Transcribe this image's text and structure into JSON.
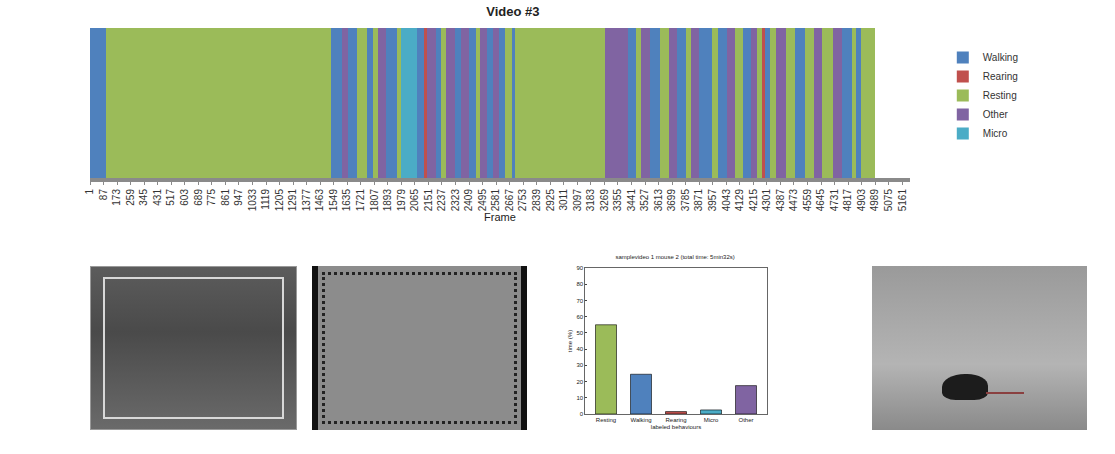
{
  "chart_data": [
    {
      "type": "timeline",
      "title": "Video #3",
      "xlabel": "Frame",
      "xlim": [
        1,
        5210
      ],
      "xticks": [
        1,
        87,
        173,
        259,
        345,
        431,
        517,
        603,
        689,
        775,
        861,
        947,
        1033,
        1119,
        1205,
        1291,
        1377,
        1463,
        1549,
        1635,
        1721,
        1807,
        1893,
        1979,
        2065,
        2151,
        2237,
        2323,
        2409,
        2495,
        2581,
        2667,
        2753,
        2839,
        2925,
        3011,
        3097,
        3183,
        3269,
        3355,
        3441,
        3527,
        3613,
        3699,
        3785,
        3871,
        3957,
        4043,
        4129,
        4215,
        4301,
        4387,
        4473,
        4559,
        4645,
        4731,
        4817,
        4903,
        4989,
        5075,
        5161
      ],
      "tick_labels": "x",
      "legend": "right",
      "grid": false,
      "series": [
        {
          "name": "Walking",
          "color": "#4f81bd",
          "segments": [
            [
              1,
              100
            ],
            [
              1530,
              1600
            ],
            [
              1640,
              1700
            ],
            [
              1760,
              1800
            ],
            [
              1880,
              1950
            ],
            [
              2080,
              2120
            ],
            [
              2200,
              2230
            ],
            [
              2320,
              2360
            ],
            [
              2410,
              2450
            ],
            [
              2520,
              2560
            ],
            [
              2600,
              2640
            ],
            [
              2680,
              2700
            ],
            [
              3420,
              3470
            ],
            [
              3560,
              3620
            ],
            [
              3730,
              3790
            ],
            [
              3870,
              3950
            ],
            [
              3990,
              4050
            ],
            [
              4150,
              4200
            ],
            [
              4290,
              4320
            ],
            [
              4480,
              4540
            ],
            [
              4780,
              4840
            ],
            [
              4870,
              4900
            ]
          ]
        },
        {
          "name": "Rearing",
          "color": "#c0504d",
          "segments": [
            [
              2120,
              2140
            ],
            [
              4270,
              4290
            ]
          ]
        },
        {
          "name": "Resting",
          "color": "#9bbb59",
          "segments": [
            [
              100,
              1530
            ],
            [
              1700,
              1760
            ],
            [
              1800,
              1830
            ],
            [
              1950,
              1975
            ],
            [
              2230,
              2260
            ],
            [
              2450,
              2480
            ],
            [
              2640,
              2680
            ],
            [
              2700,
              3270
            ],
            [
              3470,
              3500
            ],
            [
              3620,
              3680
            ],
            [
              3790,
              3820
            ],
            [
              3950,
              3990
            ],
            [
              4100,
              4150
            ],
            [
              4240,
              4270
            ],
            [
              4320,
              4360
            ],
            [
              4420,
              4480
            ],
            [
              4540,
              4600
            ],
            [
              4650,
              4720
            ],
            [
              4840,
              4870
            ],
            [
              4900,
              4990
            ]
          ]
        },
        {
          "name": "Other",
          "color": "#8064a2",
          "segments": [
            [
              1600,
              1640
            ],
            [
              1830,
              1880
            ],
            [
              2140,
              2200
            ],
            [
              2260,
              2320
            ],
            [
              2360,
              2410
            ],
            [
              2480,
              2520
            ],
            [
              2560,
              2600
            ],
            [
              3270,
              3420
            ],
            [
              3500,
              3560
            ],
            [
              3680,
              3730
            ],
            [
              3820,
              3870
            ],
            [
              4050,
              4100
            ],
            [
              4200,
              4240
            ],
            [
              4360,
              4420
            ],
            [
              4600,
              4650
            ],
            [
              4720,
              4780
            ]
          ]
        },
        {
          "name": "Micro",
          "color": "#4bacc6",
          "segments": [
            [
              1975,
              2080
            ]
          ]
        }
      ]
    },
    {
      "type": "bar",
      "title": "samplevideo 1 mouse 2 (total time: 5min32s)",
      "xlabel": "labeled behaviours",
      "ylabel": "time (%)",
      "categories": [
        "Resting",
        "Walking",
        "Rearing",
        "Micro",
        "Other"
      ],
      "values": [
        55,
        24.5,
        1.5,
        2.5,
        17.5
      ],
      "colors": [
        "#9bbb59",
        "#4f81bd",
        "#c0504d",
        "#4bacc6",
        "#8064a2"
      ],
      "ylim": [
        0,
        90
      ],
      "yticks": [
        0,
        10,
        20,
        30,
        40,
        50,
        60,
        70,
        80,
        90
      ],
      "grid": false
    }
  ]
}
